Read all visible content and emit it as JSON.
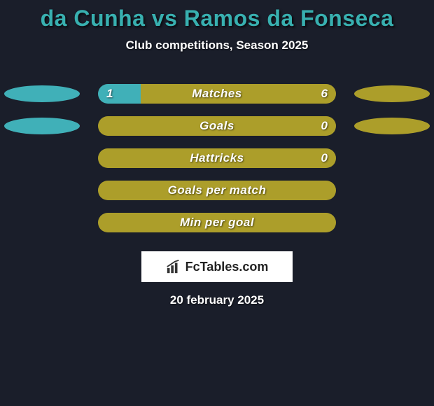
{
  "background_color": "#1a1e2a",
  "title": {
    "text": "da Cunha vs Ramos da Fonseca",
    "color": "#38b0b0",
    "fontsize": 32
  },
  "subtitle": {
    "text": "Club competitions, Season 2025",
    "color": "#ffffff",
    "fontsize": 17
  },
  "bar_style": {
    "track_width": 340,
    "track_height": 28,
    "border_radius": 14,
    "label_color": "#ffffff",
    "value_color": "#ffffff",
    "label_fontsize": 17,
    "left_color": "#40b0b8",
    "right_color": "#ac9e2a",
    "full_color": "#ac9e2a",
    "ellipse_left_color": "#40b0b8",
    "ellipse_right_color": "#ac9e2a",
    "ellipse_width": 108,
    "ellipse_height": 24
  },
  "bars": [
    {
      "label": "Matches",
      "left_value": "1",
      "right_value": "6",
      "left_pct": 18,
      "right_pct": 82,
      "show_ellipses": true,
      "show_values": true
    },
    {
      "label": "Goals",
      "left_value": "",
      "right_value": "0",
      "left_pct": 0,
      "right_pct": 100,
      "show_ellipses": true,
      "show_values": true
    },
    {
      "label": "Hattricks",
      "left_value": "",
      "right_value": "0",
      "left_pct": 0,
      "right_pct": 100,
      "show_ellipses": false,
      "show_values": true
    },
    {
      "label": "Goals per match",
      "left_value": "",
      "right_value": "",
      "left_pct": 0,
      "right_pct": 100,
      "show_ellipses": false,
      "show_values": false
    },
    {
      "label": "Min per goal",
      "left_value": "",
      "right_value": "",
      "left_pct": 0,
      "right_pct": 100,
      "show_ellipses": false,
      "show_values": false
    }
  ],
  "brand": {
    "text": "FcTables.com",
    "background": "#ffffff",
    "text_color": "#222222",
    "icon_color": "#333333"
  },
  "date": {
    "text": "20 february 2025",
    "color": "#ffffff"
  }
}
